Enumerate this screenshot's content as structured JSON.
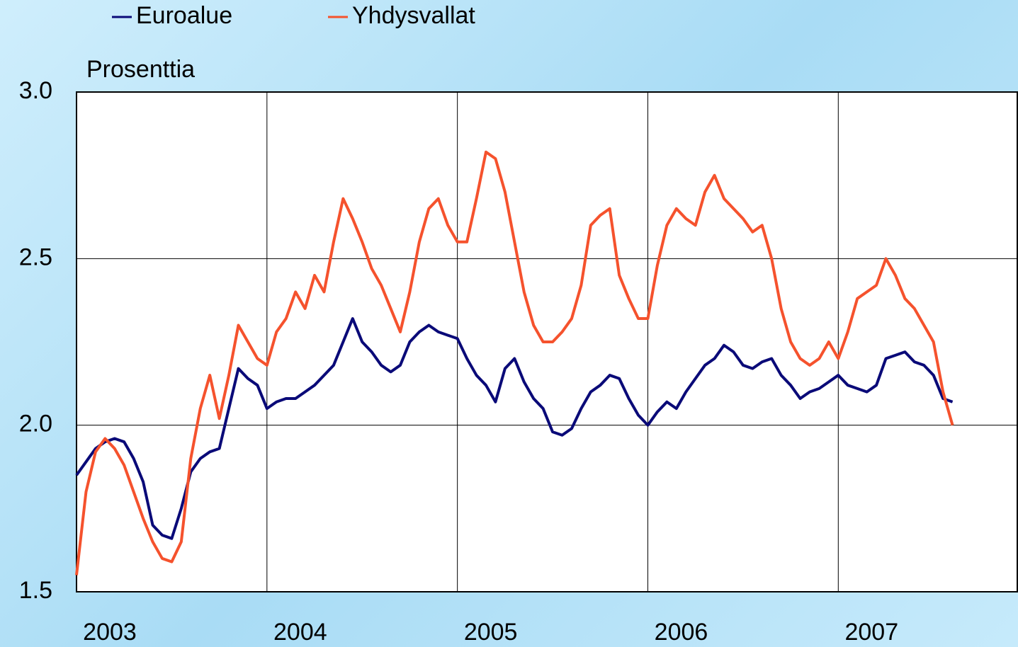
{
  "chart_data": {
    "type": "line",
    "y_label": "Prosenttia",
    "x": [
      2003.0,
      2003.05,
      2003.1,
      2003.15,
      2003.2,
      2003.25,
      2003.3,
      2003.35,
      2003.4,
      2003.45,
      2003.5,
      2003.55,
      2003.6,
      2003.65,
      2003.7,
      2003.75,
      2003.8,
      2003.85,
      2003.9,
      2003.95,
      2004.0,
      2004.05,
      2004.1,
      2004.15,
      2004.2,
      2004.25,
      2004.3,
      2004.35,
      2004.4,
      2004.45,
      2004.5,
      2004.55,
      2004.6,
      2004.65,
      2004.7,
      2004.75,
      2004.8,
      2004.85,
      2004.9,
      2004.95,
      2005.0,
      2005.05,
      2005.1,
      2005.15,
      2005.2,
      2005.25,
      2005.3,
      2005.35,
      2005.4,
      2005.45,
      2005.5,
      2005.55,
      2005.6,
      2005.65,
      2005.7,
      2005.75,
      2005.8,
      2005.85,
      2005.9,
      2005.95,
      2006.0,
      2006.05,
      2006.1,
      2006.15,
      2006.2,
      2006.25,
      2006.3,
      2006.35,
      2006.4,
      2006.45,
      2006.5,
      2006.55,
      2006.6,
      2006.65,
      2006.7,
      2006.75,
      2006.8,
      2006.85,
      2006.9,
      2006.95,
      2007.0,
      2007.05,
      2007.1,
      2007.15,
      2007.2,
      2007.25,
      2007.3,
      2007.35,
      2007.4,
      2007.45,
      2007.5,
      2007.55,
      2007.6
    ],
    "series": [
      {
        "name": "Euroalue",
        "color": "#0a0a78",
        "values": [
          1.85,
          1.89,
          1.93,
          1.95,
          1.96,
          1.95,
          1.9,
          1.83,
          1.7,
          1.67,
          1.66,
          1.75,
          1.86,
          1.9,
          1.92,
          1.93,
          2.05,
          2.17,
          2.14,
          2.12,
          2.05,
          2.07,
          2.08,
          2.08,
          2.1,
          2.12,
          2.15,
          2.18,
          2.25,
          2.32,
          2.25,
          2.22,
          2.18,
          2.16,
          2.18,
          2.25,
          2.28,
          2.3,
          2.28,
          2.27,
          2.26,
          2.2,
          2.15,
          2.12,
          2.07,
          2.17,
          2.2,
          2.13,
          2.08,
          2.05,
          1.98,
          1.97,
          1.99,
          2.05,
          2.1,
          2.12,
          2.15,
          2.14,
          2.08,
          2.03,
          2.0,
          2.04,
          2.07,
          2.05,
          2.1,
          2.14,
          2.18,
          2.2,
          2.24,
          2.22,
          2.18,
          2.17,
          2.19,
          2.2,
          2.15,
          2.12,
          2.08,
          2.1,
          2.11,
          2.13,
          2.15,
          2.12,
          2.11,
          2.1,
          2.12,
          2.2,
          2.21,
          2.22,
          2.19,
          2.18,
          2.15,
          2.08,
          2.07
        ]
      },
      {
        "name": "Yhdysvallat",
        "color": "#f5522d",
        "values": [
          1.55,
          1.8,
          1.92,
          1.96,
          1.93,
          1.88,
          1.8,
          1.72,
          1.65,
          1.6,
          1.59,
          1.65,
          1.9,
          2.05,
          2.15,
          2.02,
          2.15,
          2.3,
          2.25,
          2.2,
          2.18,
          2.28,
          2.32,
          2.4,
          2.35,
          2.45,
          2.4,
          2.55,
          2.68,
          2.62,
          2.55,
          2.47,
          2.42,
          2.35,
          2.28,
          2.4,
          2.55,
          2.65,
          2.68,
          2.6,
          2.55,
          2.55,
          2.68,
          2.82,
          2.8,
          2.7,
          2.55,
          2.4,
          2.3,
          2.25,
          2.25,
          2.28,
          2.32,
          2.42,
          2.6,
          2.63,
          2.65,
          2.45,
          2.38,
          2.32,
          2.32,
          2.48,
          2.6,
          2.65,
          2.62,
          2.6,
          2.7,
          2.75,
          2.68,
          2.65,
          2.62,
          2.58,
          2.6,
          2.5,
          2.35,
          2.25,
          2.2,
          2.18,
          2.2,
          2.25,
          2.2,
          2.28,
          2.38,
          2.4,
          2.42,
          2.5,
          2.45,
          2.38,
          2.35,
          2.3,
          2.25,
          2.1,
          2.0
        ]
      }
    ],
    "xlim": [
      2003,
      2007.94
    ],
    "xticks": [
      2003,
      2004,
      2005,
      2006,
      2007
    ],
    "ylim": [
      1.5,
      3.0
    ],
    "yticks": [
      {
        "value": 1.5,
        "label": "1.5"
      },
      {
        "value": 2.0,
        "label": "2.0"
      },
      {
        "value": 2.5,
        "label": "2.5"
      },
      {
        "value": 3.0,
        "label": "3.0"
      }
    ],
    "grid": true
  }
}
